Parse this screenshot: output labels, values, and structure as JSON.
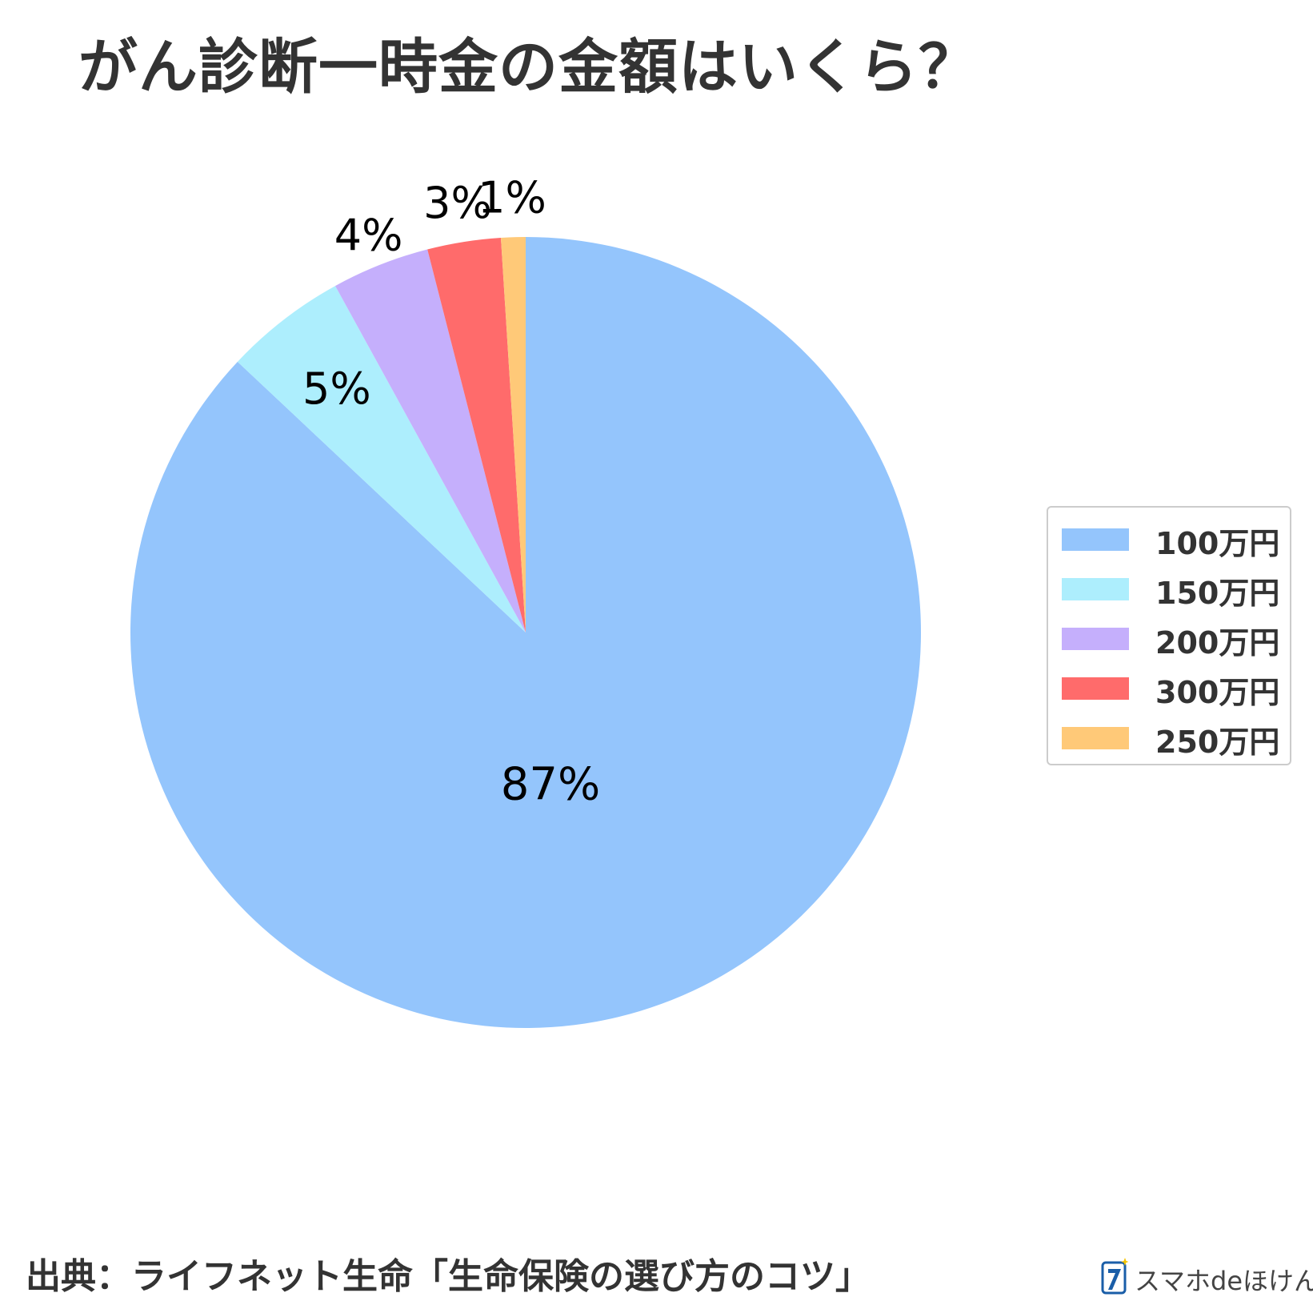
{
  "title": "がん診断一時金の金額はいくら？",
  "source": "出典：ライフネット生命「生命保険の選び方のコツ」",
  "brand": {
    "name": "スマホdeほけん",
    "icon": "brand-logo-icon",
    "colors": {
      "primary": "#1a5ea8",
      "star": "#f5c400"
    }
  },
  "chart_data": {
    "type": "pie",
    "title": "がん診断一時金の金額はいくら？",
    "start_angle": "top",
    "direction": "clockwise",
    "legend_position": "right",
    "slices": [
      {
        "name": "100万円",
        "value": 87,
        "label": "87%",
        "color": "#94c5fc"
      },
      {
        "name": "150万円",
        "value": 5,
        "label": "5%",
        "color": "#adeefd"
      },
      {
        "name": "200万円",
        "value": 4,
        "label": "4%",
        "color": "#c5affc"
      },
      {
        "name": "300万円",
        "value": 3,
        "label": "3%",
        "color": "#ff6b6b"
      },
      {
        "name": "250万円",
        "value": 1,
        "label": "1%",
        "color": "#ffc978"
      }
    ]
  }
}
